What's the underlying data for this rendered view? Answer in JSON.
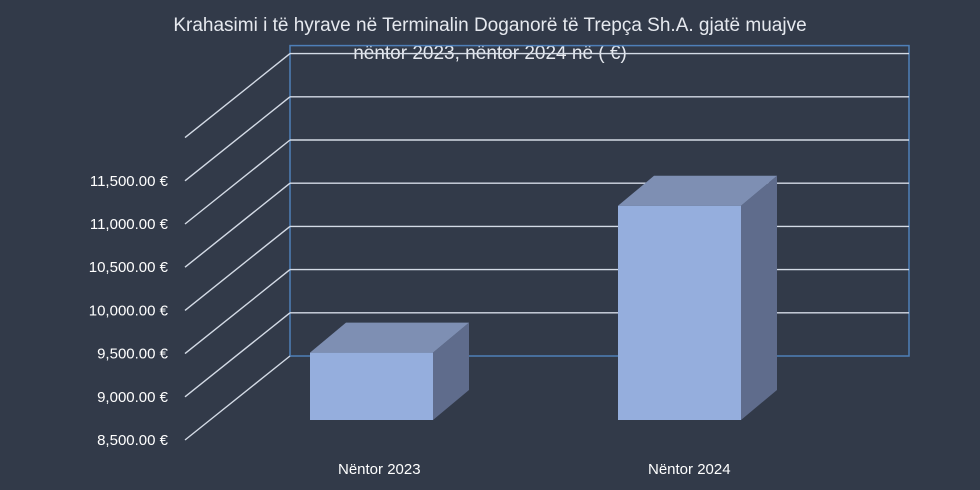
{
  "chart_data": {
    "type": "bar",
    "title_lines": [
      "Krahasimi i të hyrave në Terminalin Doganorë të Trepça Sh.A. gjatë muajve",
      "nëntor 2023, nëntor 2024 në ( €)"
    ],
    "categories": [
      "Nëntor 2023",
      "Nëntor 2024"
    ],
    "values": [
      9650,
      11350
    ],
    "ylim": [
      8500,
      12000
    ],
    "y_ticks": [
      "8,500.00 €",
      "9,000.00 €",
      "9,500.00 €",
      "10,000.00 €",
      "10,500.00 €",
      "11,000.00 €",
      "11,500.00 €"
    ],
    "y_tick_values": [
      8500,
      9000,
      9500,
      10000,
      10500,
      11000,
      11500
    ],
    "style": "3d-bar",
    "grid": true,
    "colors": {
      "background": "#323a49",
      "bar_front": "#95aedd",
      "bar_top": "#7e8fb3",
      "bar_side": "#5f6c8c",
      "grid": "#d4dbe6",
      "back_wall_edge": "#4e7fb8"
    }
  }
}
